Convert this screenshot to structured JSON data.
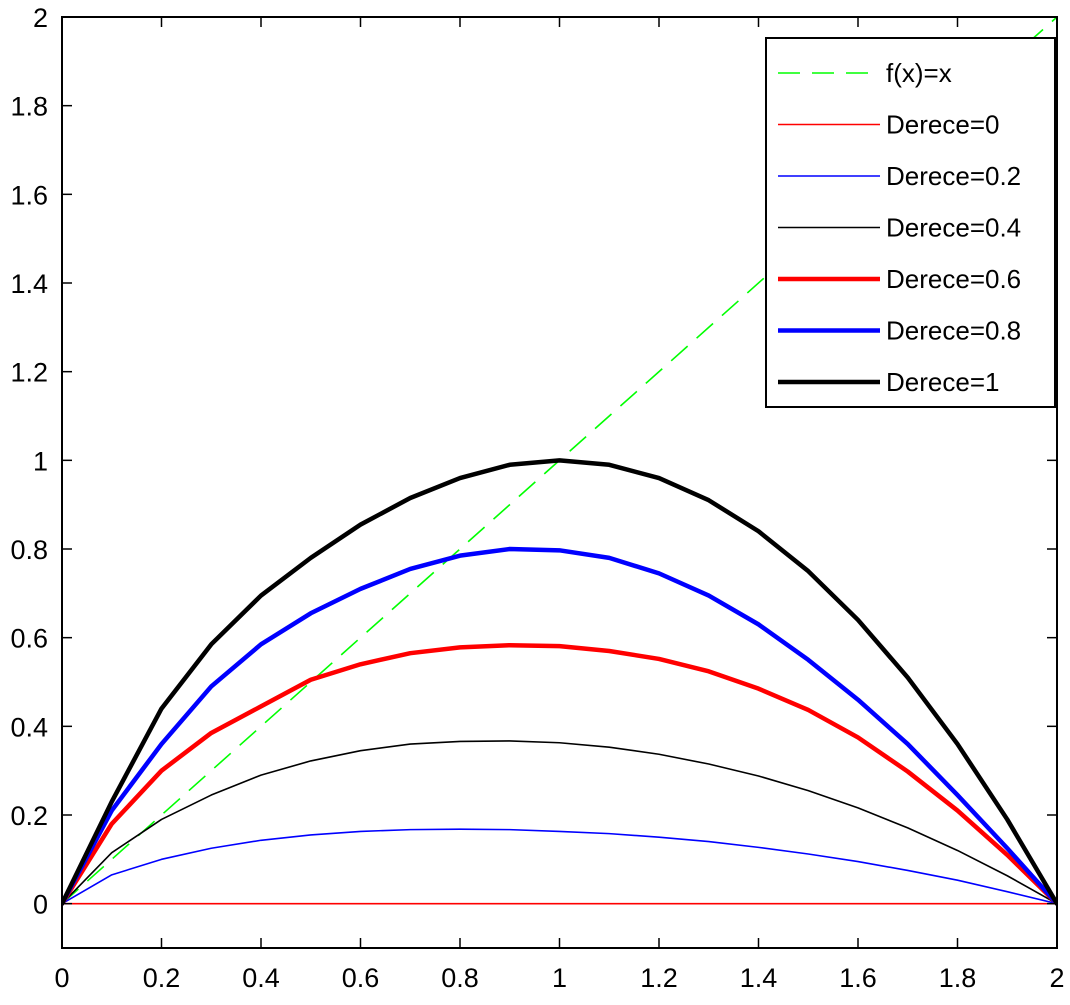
{
  "chart_data": {
    "type": "line",
    "title": "",
    "xlabel": "",
    "ylabel": "",
    "xlim": [
      0,
      2
    ],
    "ylim": [
      -0.1,
      2
    ],
    "grid": false,
    "legend_position": "top-right",
    "x_ticks": [
      {
        "value": 0,
        "label": "0"
      },
      {
        "value": 0.2,
        "label": "0.2"
      },
      {
        "value": 0.4,
        "label": "0.4"
      },
      {
        "value": 0.6,
        "label": "0.6"
      },
      {
        "value": 0.8,
        "label": "0.8"
      },
      {
        "value": 1,
        "label": "1"
      },
      {
        "value": 1.2,
        "label": "1.2"
      },
      {
        "value": 1.4,
        "label": "1.4"
      },
      {
        "value": 1.6,
        "label": "1.6"
      },
      {
        "value": 1.8,
        "label": "1.8"
      },
      {
        "value": 2,
        "label": "2"
      }
    ],
    "y_ticks": [
      {
        "value": 0,
        "label": "0"
      },
      {
        "value": 0.2,
        "label": "0.2"
      },
      {
        "value": 0.4,
        "label": "0.4"
      },
      {
        "value": 0.6,
        "label": "0.6"
      },
      {
        "value": 0.8,
        "label": "0.8"
      },
      {
        "value": 1,
        "label": "1"
      },
      {
        "value": 1.2,
        "label": "1.2"
      },
      {
        "value": 1.4,
        "label": "1.4"
      },
      {
        "value": 1.6,
        "label": "1.6"
      },
      {
        "value": 1.8,
        "label": "1.8"
      },
      {
        "value": 2,
        "label": "2"
      }
    ],
    "series": [
      {
        "name": "f(x)=x",
        "color": "#00ff00",
        "style": "dashed",
        "width": "thin",
        "x": [
          0,
          2
        ],
        "y": [
          0,
          2
        ]
      },
      {
        "name": "Derece=0",
        "color": "#ff0000",
        "style": "solid",
        "width": "thin",
        "x": [
          0,
          0.2,
          0.4,
          0.6,
          0.8,
          1.0,
          1.2,
          1.4,
          1.6,
          1.8,
          2.0
        ],
        "y": [
          0,
          0,
          0,
          0,
          0,
          0,
          0,
          0,
          0,
          0,
          0
        ]
      },
      {
        "name": "Derece=0.2",
        "color": "#0000ff",
        "style": "solid",
        "width": "thin",
        "x": [
          0,
          0.1,
          0.2,
          0.3,
          0.4,
          0.5,
          0.6,
          0.7,
          0.8,
          0.9,
          1.0,
          1.1,
          1.2,
          1.3,
          1.4,
          1.5,
          1.6,
          1.7,
          1.8,
          1.9,
          2.0
        ],
        "y": [
          0,
          0.065,
          0.1,
          0.125,
          0.143,
          0.155,
          0.163,
          0.167,
          0.168,
          0.167,
          0.163,
          0.158,
          0.15,
          0.14,
          0.127,
          0.112,
          0.095,
          0.075,
          0.053,
          0.027,
          0
        ]
      },
      {
        "name": "Derece=0.4",
        "color": "#000000",
        "style": "solid",
        "width": "thin",
        "x": [
          0,
          0.1,
          0.2,
          0.3,
          0.4,
          0.5,
          0.6,
          0.7,
          0.8,
          0.9,
          1.0,
          1.1,
          1.2,
          1.3,
          1.4,
          1.5,
          1.6,
          1.7,
          1.8,
          1.9,
          2.0
        ],
        "y": [
          0,
          0.115,
          0.19,
          0.245,
          0.29,
          0.322,
          0.345,
          0.36,
          0.366,
          0.367,
          0.363,
          0.353,
          0.337,
          0.315,
          0.288,
          0.255,
          0.216,
          0.171,
          0.12,
          0.063,
          0
        ]
      },
      {
        "name": "Derece=0.6",
        "color": "#ff0000",
        "style": "solid",
        "width": "thick",
        "x": [
          0,
          0.1,
          0.2,
          0.3,
          0.4,
          0.5,
          0.6,
          0.7,
          0.8,
          0.9,
          1.0,
          1.1,
          1.2,
          1.3,
          1.4,
          1.5,
          1.6,
          1.7,
          1.8,
          1.9,
          2.0
        ],
        "y": [
          0,
          0.18,
          0.3,
          0.385,
          0.445,
          0.505,
          0.54,
          0.565,
          0.578,
          0.583,
          0.581,
          0.57,
          0.552,
          0.524,
          0.485,
          0.437,
          0.375,
          0.298,
          0.21,
          0.11,
          0
        ]
      },
      {
        "name": "Derece=0.8",
        "color": "#0000ff",
        "style": "solid",
        "width": "thick",
        "x": [
          0,
          0.1,
          0.2,
          0.3,
          0.4,
          0.5,
          0.6,
          0.7,
          0.8,
          0.9,
          1.0,
          1.1,
          1.2,
          1.3,
          1.4,
          1.5,
          1.6,
          1.7,
          1.8,
          1.9,
          2.0
        ],
        "y": [
          0,
          0.21,
          0.36,
          0.49,
          0.585,
          0.655,
          0.71,
          0.755,
          0.785,
          0.8,
          0.797,
          0.78,
          0.745,
          0.695,
          0.63,
          0.55,
          0.46,
          0.36,
          0.245,
          0.125,
          0
        ]
      },
      {
        "name": "Derece=1",
        "color": "#000000",
        "style": "solid",
        "width": "thick",
        "x": [
          0,
          0.1,
          0.2,
          0.3,
          0.4,
          0.5,
          0.6,
          0.7,
          0.8,
          0.9,
          1.0,
          1.1,
          1.2,
          1.3,
          1.4,
          1.5,
          1.6,
          1.7,
          1.8,
          1.9,
          2.0
        ],
        "y": [
          0,
          0.23,
          0.44,
          0.585,
          0.695,
          0.78,
          0.855,
          0.915,
          0.96,
          0.99,
          1.0,
          0.99,
          0.96,
          0.91,
          0.84,
          0.75,
          0.64,
          0.51,
          0.36,
          0.19,
          0
        ]
      }
    ]
  }
}
